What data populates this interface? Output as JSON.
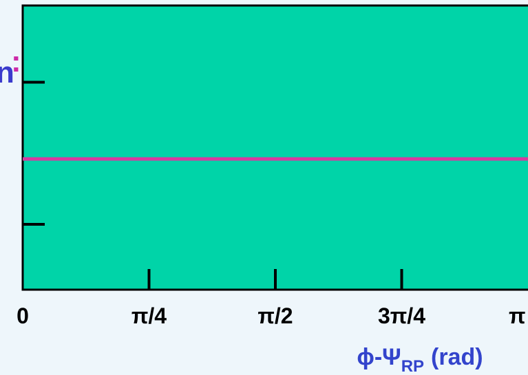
{
  "chart_data": {
    "type": "line",
    "annotations": [
      "n",
      ":"
    ],
    "x_label": {
      "main": "ϕ-Ψ",
      "sub": "RP",
      "suffix": "(rad)"
    },
    "x": [
      0,
      3.14159
    ],
    "series": [
      {
        "color": "#d63aa0",
        "values": [
          0.46,
          0.46
        ]
      }
    ],
    "xlim": [
      0,
      3.14159
    ],
    "xticks": [
      {
        "value": 0,
        "label": "0"
      },
      {
        "value": 0.7854,
        "label": "π/4"
      },
      {
        "value": 1.5708,
        "label": "π/2"
      },
      {
        "value": 2.3562,
        "label": "3π/4"
      },
      {
        "value": 3.14159,
        "label": "π"
      }
    ],
    "ylim": [
      0,
      1
    ],
    "yticks": [
      0.23,
      0.73
    ],
    "plot_color": "#00d4a8"
  }
}
